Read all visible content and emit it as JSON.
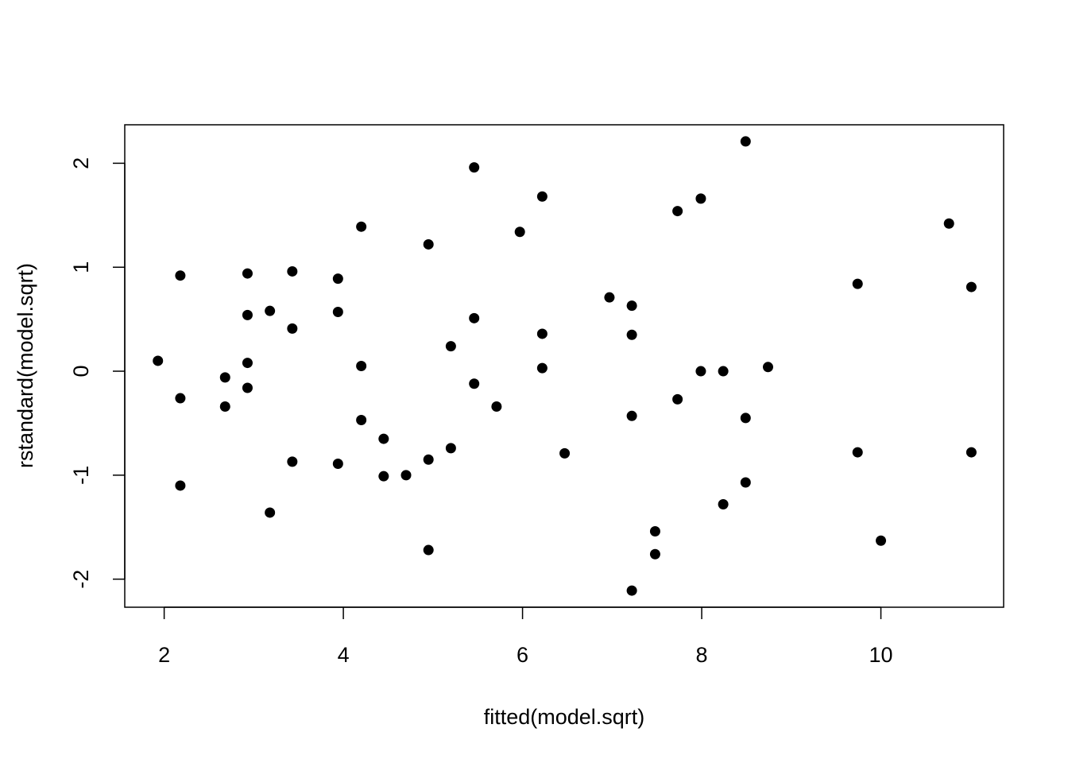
{
  "chart_data": {
    "type": "scatter",
    "title": "",
    "xlabel": "fitted(model.sqrt)",
    "ylabel": "rstandard(model.sqrt)",
    "xlim": [
      1.56,
      11.37
    ],
    "ylim": [
      -2.27,
      2.37
    ],
    "xticks": [
      2,
      4,
      6,
      8,
      10
    ],
    "yticks": [
      -2,
      -1,
      0,
      1,
      2
    ],
    "grid": false,
    "legend": "none",
    "point_color": "#000000",
    "points": [
      {
        "x": 1.93,
        "y": 0.1
      },
      {
        "x": 2.18,
        "y": 0.92
      },
      {
        "x": 2.18,
        "y": -0.26
      },
      {
        "x": 2.18,
        "y": -1.1
      },
      {
        "x": 2.68,
        "y": -0.06
      },
      {
        "x": 2.68,
        "y": -0.34
      },
      {
        "x": 2.93,
        "y": 0.94
      },
      {
        "x": 2.93,
        "y": 0.54
      },
      {
        "x": 2.93,
        "y": 0.08
      },
      {
        "x": 2.93,
        "y": -0.16
      },
      {
        "x": 3.18,
        "y": 0.58
      },
      {
        "x": 3.18,
        "y": -1.36
      },
      {
        "x": 3.43,
        "y": 0.96
      },
      {
        "x": 3.43,
        "y": 0.41
      },
      {
        "x": 3.43,
        "y": -0.87
      },
      {
        "x": 3.94,
        "y": 0.89
      },
      {
        "x": 3.94,
        "y": 0.57
      },
      {
        "x": 3.94,
        "y": -0.89
      },
      {
        "x": 4.2,
        "y": 1.39
      },
      {
        "x": 4.2,
        "y": 0.05
      },
      {
        "x": 4.2,
        "y": -0.47
      },
      {
        "x": 4.45,
        "y": -0.65
      },
      {
        "x": 4.45,
        "y": -1.01
      },
      {
        "x": 4.7,
        "y": -1.0
      },
      {
        "x": 4.95,
        "y": 1.22
      },
      {
        "x": 4.95,
        "y": -0.85
      },
      {
        "x": 4.95,
        "y": -1.72
      },
      {
        "x": 5.2,
        "y": 0.24
      },
      {
        "x": 5.2,
        "y": -0.74
      },
      {
        "x": 5.46,
        "y": 1.96
      },
      {
        "x": 5.46,
        "y": 0.51
      },
      {
        "x": 5.46,
        "y": -0.12
      },
      {
        "x": 5.71,
        "y": -0.34
      },
      {
        "x": 5.97,
        "y": 1.34
      },
      {
        "x": 6.22,
        "y": 1.68
      },
      {
        "x": 6.22,
        "y": 0.36
      },
      {
        "x": 6.22,
        "y": 0.03
      },
      {
        "x": 6.47,
        "y": -0.79
      },
      {
        "x": 6.97,
        "y": 0.71
      },
      {
        "x": 7.22,
        "y": 0.63
      },
      {
        "x": 7.22,
        "y": 0.35
      },
      {
        "x": 7.22,
        "y": -0.43
      },
      {
        "x": 7.22,
        "y": -2.11
      },
      {
        "x": 7.48,
        "y": -1.54
      },
      {
        "x": 7.48,
        "y": -1.76
      },
      {
        "x": 7.73,
        "y": 1.54
      },
      {
        "x": 7.73,
        "y": -0.27
      },
      {
        "x": 7.99,
        "y": 1.66
      },
      {
        "x": 7.99,
        "y": 0.0
      },
      {
        "x": 8.24,
        "y": 0.0
      },
      {
        "x": 8.24,
        "y": -1.28
      },
      {
        "x": 8.49,
        "y": 2.21
      },
      {
        "x": 8.49,
        "y": -0.45
      },
      {
        "x": 8.49,
        "y": -1.07
      },
      {
        "x": 8.74,
        "y": 0.04
      },
      {
        "x": 9.74,
        "y": 0.84
      },
      {
        "x": 9.74,
        "y": -0.78
      },
      {
        "x": 10.0,
        "y": -1.63
      },
      {
        "x": 10.76,
        "y": 1.42
      },
      {
        "x": 11.01,
        "y": 0.81
      },
      {
        "x": 11.01,
        "y": -0.78
      }
    ]
  }
}
